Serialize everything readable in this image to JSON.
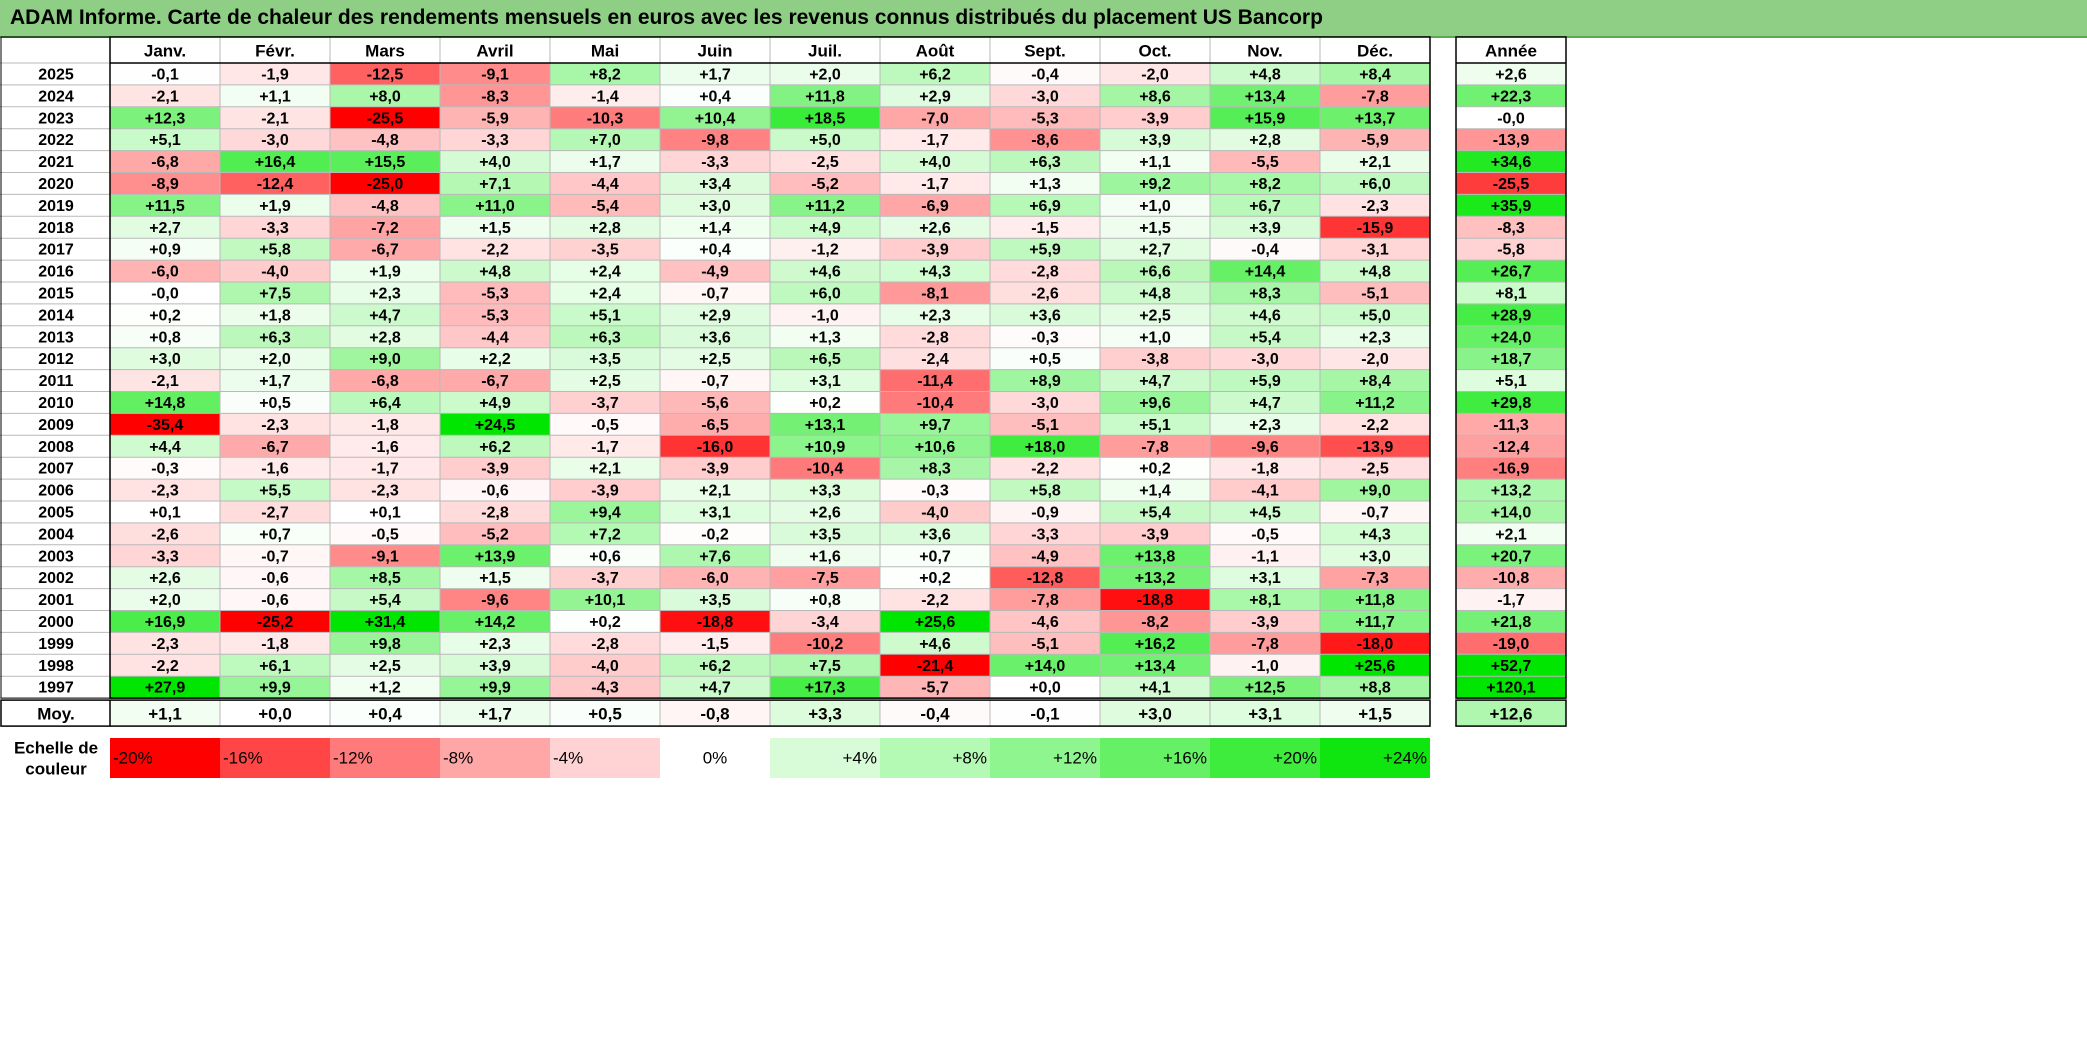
{
  "title": "ADAM Informe. Carte de chaleur des rendements mensuels en euros avec les revenus connus distribués du placement US Bancorp",
  "chart_data": {
    "type": "heatmap",
    "months": [
      "Janv.",
      "Févr.",
      "Mars",
      "Avril",
      "Mai",
      "Juin",
      "Juil.",
      "Août",
      "Sept.",
      "Oct.",
      "Nov.",
      "Déc."
    ],
    "year_header": "Année",
    "rows": [
      {
        "year": "2025",
        "values": [
          "-0,1",
          "-1,9",
          "-12,5",
          "-9,1",
          "+8,2",
          "+1,7",
          "+2,0",
          "+6,2",
          "-0,4",
          "-2,0",
          "+4,8",
          "+8,4"
        ],
        "annual": "+2,6"
      },
      {
        "year": "2024",
        "values": [
          "-2,1",
          "+1,1",
          "+8,0",
          "-8,3",
          "-1,4",
          "+0,4",
          "+11,8",
          "+2,9",
          "-3,0",
          "+8,6",
          "+13,4",
          "-7,8"
        ],
        "annual": "+22,3"
      },
      {
        "year": "2023",
        "values": [
          "+12,3",
          "-2,1",
          "-25,5",
          "-5,9",
          "-10,3",
          "+10,4",
          "+18,5",
          "-7,0",
          "-5,3",
          "-3,9",
          "+15,9",
          "+13,7"
        ],
        "annual": "-0,0"
      },
      {
        "year": "2022",
        "values": [
          "+5,1",
          "-3,0",
          "-4,8",
          "-3,3",
          "+7,0",
          "-9,8",
          "+5,0",
          "-1,7",
          "-8,6",
          "+3,9",
          "+2,8",
          "-5,9"
        ],
        "annual": "-13,9"
      },
      {
        "year": "2021",
        "values": [
          "-6,8",
          "+16,4",
          "+15,5",
          "+4,0",
          "+1,7",
          "-3,3",
          "-2,5",
          "+4,0",
          "+6,3",
          "+1,1",
          "-5,5",
          "+2,1"
        ],
        "annual": "+34,6"
      },
      {
        "year": "2020",
        "values": [
          "-8,9",
          "-12,4",
          "-25,0",
          "+7,1",
          "-4,4",
          "+3,4",
          "-5,2",
          "-1,7",
          "+1,3",
          "+9,2",
          "+8,2",
          "+6,0"
        ],
        "annual": "-25,5"
      },
      {
        "year": "2019",
        "values": [
          "+11,5",
          "+1,9",
          "-4,8",
          "+11,0",
          "-5,4",
          "+3,0",
          "+11,2",
          "-6,9",
          "+6,9",
          "+1,0",
          "+6,7",
          "-2,3"
        ],
        "annual": "+35,9"
      },
      {
        "year": "2018",
        "values": [
          "+2,7",
          "-3,3",
          "-7,2",
          "+1,5",
          "+2,8",
          "+1,4",
          "+4,9",
          "+2,6",
          "-1,5",
          "+1,5",
          "+3,9",
          "-15,9"
        ],
        "annual": "-8,3"
      },
      {
        "year": "2017",
        "values": [
          "+0,9",
          "+5,8",
          "-6,7",
          "-2,2",
          "-3,5",
          "+0,4",
          "-1,2",
          "-3,9",
          "+5,9",
          "+2,7",
          "-0,4",
          "-3,1"
        ],
        "annual": "-5,8"
      },
      {
        "year": "2016",
        "values": [
          "-6,0",
          "-4,0",
          "+1,9",
          "+4,8",
          "+2,4",
          "-4,9",
          "+4,6",
          "+4,3",
          "-2,8",
          "+6,6",
          "+14,4",
          "+4,8"
        ],
        "annual": "+26,7"
      },
      {
        "year": "2015",
        "values": [
          "-0,0",
          "+7,5",
          "+2,3",
          "-5,3",
          "+2,4",
          "-0,7",
          "+6,0",
          "-8,1",
          "-2,6",
          "+4,8",
          "+8,3",
          "-5,1"
        ],
        "annual": "+8,1"
      },
      {
        "year": "2014",
        "values": [
          "+0,2",
          "+1,8",
          "+4,7",
          "-5,3",
          "+5,1",
          "+2,9",
          "-1,0",
          "+2,3",
          "+3,6",
          "+2,5",
          "+4,6",
          "+5,0"
        ],
        "annual": "+28,9"
      },
      {
        "year": "2013",
        "values": [
          "+0,8",
          "+6,3",
          "+2,8",
          "-4,4",
          "+6,3",
          "+3,6",
          "+1,3",
          "-2,8",
          "-0,3",
          "+1,0",
          "+5,4",
          "+2,3"
        ],
        "annual": "+24,0"
      },
      {
        "year": "2012",
        "values": [
          "+3,0",
          "+2,0",
          "+9,0",
          "+2,2",
          "+3,5",
          "+2,5",
          "+6,5",
          "-2,4",
          "+0,5",
          "-3,8",
          "-3,0",
          "-2,0"
        ],
        "annual": "+18,7"
      },
      {
        "year": "2011",
        "values": [
          "-2,1",
          "+1,7",
          "-6,8",
          "-6,7",
          "+2,5",
          "-0,7",
          "+3,1",
          "-11,4",
          "+8,9",
          "+4,7",
          "+5,9",
          "+8,4"
        ],
        "annual": "+5,1"
      },
      {
        "year": "2010",
        "values": [
          "+14,8",
          "+0,5",
          "+6,4",
          "+4,9",
          "-3,7",
          "-5,6",
          "+0,2",
          "-10,4",
          "-3,0",
          "+9,6",
          "+4,7",
          "+11,2"
        ],
        "annual": "+29,8"
      },
      {
        "year": "2009",
        "values": [
          "-35,4",
          "-2,3",
          "-1,8",
          "+24,5",
          "-0,5",
          "-6,5",
          "+13,1",
          "+9,7",
          "-5,1",
          "+5,1",
          "+2,3",
          "-2,2"
        ],
        "annual": "-11,3"
      },
      {
        "year": "2008",
        "values": [
          "+4,4",
          "-6,7",
          "-1,6",
          "+6,2",
          "-1,7",
          "-16,0",
          "+10,9",
          "+10,6",
          "+18,0",
          "-7,8",
          "-9,6",
          "-13,9"
        ],
        "annual": "-12,4"
      },
      {
        "year": "2007",
        "values": [
          "-0,3",
          "-1,6",
          "-1,7",
          "-3,9",
          "+2,1",
          "-3,9",
          "-10,4",
          "+8,3",
          "-2,2",
          "+0,2",
          "-1,8",
          "-2,5"
        ],
        "annual": "-16,9"
      },
      {
        "year": "2006",
        "values": [
          "-2,3",
          "+5,5",
          "-2,3",
          "-0,6",
          "-3,9",
          "+2,1",
          "+3,3",
          "-0,3",
          "+5,8",
          "+1,4",
          "-4,1",
          "+9,0"
        ],
        "annual": "+13,2"
      },
      {
        "year": "2005",
        "values": [
          "+0,1",
          "-2,7",
          "+0,1",
          "-2,8",
          "+9,4",
          "+3,1",
          "+2,6",
          "-4,0",
          "-0,9",
          "+5,4",
          "+4,5",
          "-0,7"
        ],
        "annual": "+14,0"
      },
      {
        "year": "2004",
        "values": [
          "-2,6",
          "+0,7",
          "-0,5",
          "-5,2",
          "+7,2",
          "-0,2",
          "+3,5",
          "+3,6",
          "-3,3",
          "-3,9",
          "-0,5",
          "+4,3"
        ],
        "annual": "+2,1"
      },
      {
        "year": "2003",
        "values": [
          "-3,3",
          "-0,7",
          "-9,1",
          "+13,9",
          "+0,6",
          "+7,6",
          "+1,6",
          "+0,7",
          "-4,9",
          "+13,8",
          "-1,1",
          "+3,0"
        ],
        "annual": "+20,7"
      },
      {
        "year": "2002",
        "values": [
          "+2,6",
          "-0,6",
          "+8,5",
          "+1,5",
          "-3,7",
          "-6,0",
          "-7,5",
          "+0,2",
          "-12,8",
          "+13,2",
          "+3,1",
          "-7,3"
        ],
        "annual": "-10,8"
      },
      {
        "year": "2001",
        "values": [
          "+2,0",
          "-0,6",
          "+5,4",
          "-9,6",
          "+10,1",
          "+3,5",
          "+0,8",
          "-2,2",
          "-7,8",
          "-18,8",
          "+8,1",
          "+11,8"
        ],
        "annual": "-1,7"
      },
      {
        "year": "2000",
        "values": [
          "+16,9",
          "-25,2",
          "+31,4",
          "+14,2",
          "+0,2",
          "-18,8",
          "-3,4",
          "+25,6",
          "-4,6",
          "-8,2",
          "-3,9",
          "+11,7"
        ],
        "annual": "+21,8"
      },
      {
        "year": "1999",
        "values": [
          "-2,3",
          "-1,8",
          "+9,8",
          "+2,3",
          "-2,8",
          "-1,5",
          "-10,2",
          "+4,6",
          "-5,1",
          "+16,2",
          "-7,8",
          "-18,0"
        ],
        "annual": "-19,0"
      },
      {
        "year": "1998",
        "values": [
          "-2,2",
          "+6,1",
          "+2,5",
          "+3,9",
          "-4,0",
          "+6,2",
          "+7,5",
          "-21,4",
          "+14,0",
          "+13,4",
          "-1,0",
          "+25,6"
        ],
        "annual": "+52,7"
      },
      {
        "year": "1997",
        "values": [
          "+27,9",
          "+9,9",
          "+1,2",
          "+9,9",
          "-4,3",
          "+4,7",
          "+17,3",
          "-5,7",
          "+0,0",
          "+4,1",
          "+12,5",
          "+8,8"
        ],
        "annual": "+120,1"
      }
    ],
    "average": {
      "label": "Moy.",
      "values": [
        "+1,1",
        "+0,0",
        "+0,4",
        "+1,7",
        "+0,5",
        "-0,8",
        "+3,3",
        "-0,4",
        "-0,1",
        "+3,0",
        "+3,1",
        "+1,5"
      ],
      "annual": "+12,6"
    },
    "scale": {
      "label_lines": [
        "Echelle de",
        "couleur"
      ],
      "stops": [
        {
          "label": "-20%",
          "color": "#ff0000"
        },
        {
          "label": "-16%",
          "color": "#ff4545"
        },
        {
          "label": "-12%",
          "color": "#ff7a7a"
        },
        {
          "label": "-8%",
          "color": "#ffa7a7"
        },
        {
          "label": "-4%",
          "color": "#ffd3d3"
        },
        {
          "label": "0%",
          "color": "#ffffff"
        },
        {
          "label": "+4%",
          "color": "#d8fcd8"
        },
        {
          "label": "+8%",
          "color": "#b4f9b4"
        },
        {
          "label": "+12%",
          "color": "#8ff58f"
        },
        {
          "label": "+16%",
          "color": "#66f066"
        },
        {
          "label": "+20%",
          "color": "#3dec3d"
        },
        {
          "label": "+24%",
          "color": "#0fe60f"
        }
      ]
    },
    "colors": {
      "title_bar": "#8fcf85",
      "max_positive": "#00e600",
      "max_negative": "#ff0000",
      "neutral": "#ffffff"
    }
  }
}
